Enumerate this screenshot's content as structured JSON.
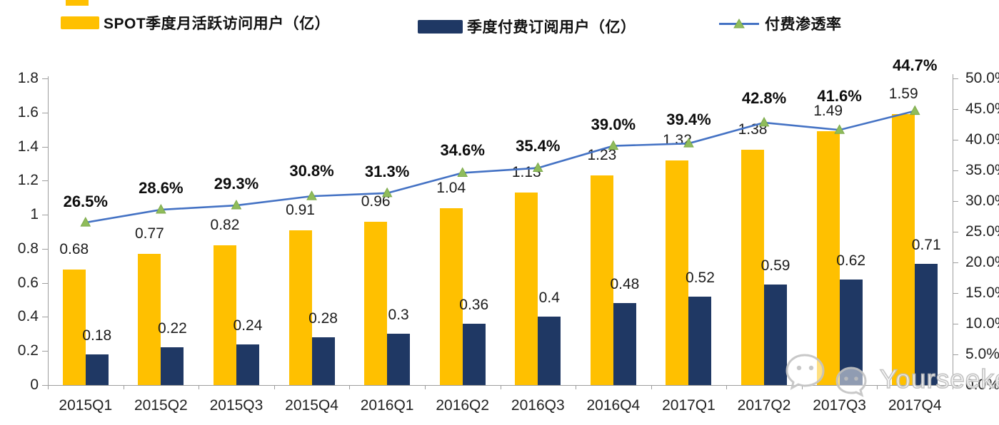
{
  "legend": {
    "items": [
      {
        "label": "SPOT季度月活跃访问用户（亿）",
        "swatch": "bar",
        "color": "#FFC000"
      },
      {
        "label": "季度付费订阅用户（亿）",
        "swatch": "bar",
        "color": "#1F3864"
      },
      {
        "label": "付费渗透率",
        "swatch": "line",
        "color": "#4472C4",
        "marker_color": "#8FBC5B"
      }
    ]
  },
  "chart_data": {
    "type": "bar",
    "subtype": "bar+line-combo",
    "categories": [
      "2015Q1",
      "2015Q2",
      "2015Q3",
      "2015Q4",
      "2016Q1",
      "2016Q2",
      "2016Q3",
      "2016Q4",
      "2017Q1",
      "2017Q2",
      "2017Q3",
      "2017Q4"
    ],
    "series": [
      {
        "name": "SPOT季度月活跃访问用户（亿）",
        "type": "bar",
        "axis": "left",
        "color": "#FFC000",
        "values": [
          0.68,
          0.77,
          0.82,
          0.91,
          0.96,
          1.04,
          1.13,
          1.23,
          1.32,
          1.38,
          1.49,
          1.59
        ],
        "labels": [
          "0.68",
          "0.77",
          "0.82",
          "0.91",
          "0.96",
          "1.04",
          "1.13",
          "1.23",
          "1.32",
          "1.38",
          "1.49",
          "1.59"
        ]
      },
      {
        "name": "季度付费订阅用户（亿）",
        "type": "bar",
        "axis": "left",
        "color": "#1F3864",
        "values": [
          0.18,
          0.22,
          0.24,
          0.28,
          0.3,
          0.36,
          0.4,
          0.48,
          0.52,
          0.59,
          0.62,
          0.71
        ],
        "labels": [
          "0.18",
          "0.22",
          "0.24",
          "0.28",
          "0.3",
          "0.36",
          "0.4",
          "0.48",
          "0.52",
          "0.59",
          "0.62",
          "0.71"
        ]
      },
      {
        "name": "付费渗透率",
        "type": "line",
        "axis": "right",
        "color": "#4472C4",
        "marker": "triangle",
        "marker_color": "#8FBC5B",
        "marker_edge": "#7CA94B",
        "values": [
          26.5,
          28.6,
          29.3,
          30.8,
          31.3,
          34.6,
          35.4,
          39.0,
          39.4,
          42.8,
          41.6,
          44.7
        ],
        "labels": [
          "26.5%",
          "28.6%",
          "29.3%",
          "30.8%",
          "31.3%",
          "34.6%",
          "35.4%",
          "39.0%",
          "39.4%",
          "42.8%",
          "41.6%",
          "44.7%"
        ]
      }
    ],
    "left_axis": {
      "min": 0,
      "max": 1.8,
      "step": 0.2,
      "ticks": [
        "0",
        "0.2",
        "0.4",
        "0.6",
        "0.8",
        "1",
        "1.2",
        "1.4",
        "1.6",
        "1.8"
      ]
    },
    "right_axis": {
      "min": 0,
      "max": 50,
      "step": 5,
      "ticks": [
        "0.0%",
        "5.0%",
        "10.0%",
        "15.0%",
        "20.0%",
        "25.0%",
        "30.0%",
        "35.0%",
        "40.0%",
        "45.0%",
        "50.0%"
      ]
    },
    "grid": false,
    "legend_position": "top",
    "layout_hints": {
      "pct_label_dy": [
        -29,
        -30,
        -30,
        -35,
        -30,
        -31,
        -31,
        -30,
        -33,
        -34,
        -47,
        -64
      ],
      "bar_label_dy": -28,
      "sub_label_dy": -26
    }
  },
  "watermark": {
    "text": "Yourseeker",
    "icon": "wechat-icon"
  },
  "colors": {
    "axis": "#9E9E9E",
    "label_text": "#1A1A1A",
    "background": "#FFFFFF"
  }
}
